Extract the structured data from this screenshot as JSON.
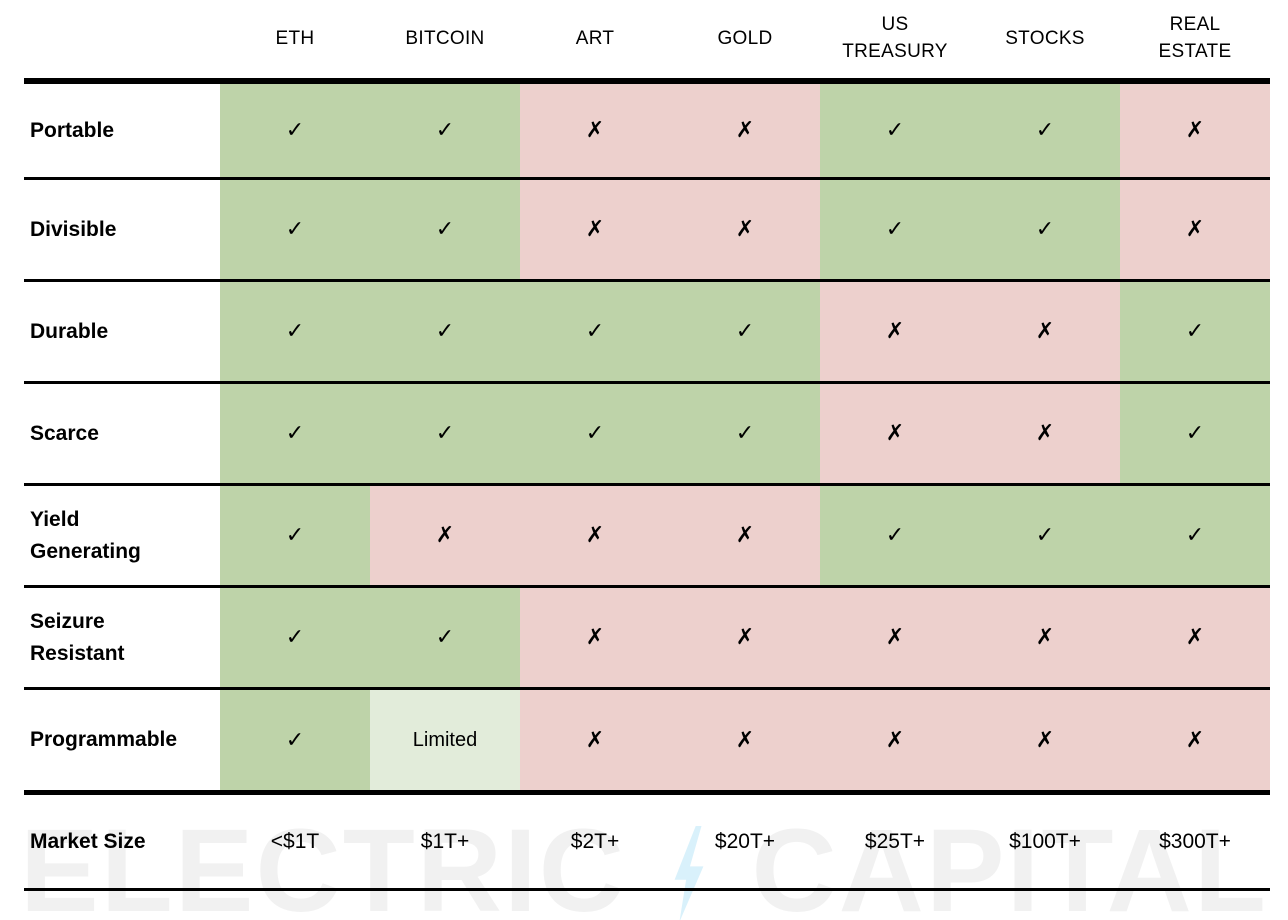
{
  "chart_data": {
    "type": "table",
    "columns": [
      "ETH",
      "BITCOIN",
      "ART",
      "GOLD",
      "US\nTREASURY",
      "STOCKS",
      "REAL\nESTATE"
    ],
    "attribute_rows": [
      {
        "label": "Portable",
        "values": [
          "yes",
          "yes",
          "no",
          "no",
          "yes",
          "yes",
          "no"
        ]
      },
      {
        "label": "Divisible",
        "values": [
          "yes",
          "yes",
          "no",
          "no",
          "yes",
          "yes",
          "no"
        ]
      },
      {
        "label": "Durable",
        "values": [
          "yes",
          "yes",
          "yes",
          "yes",
          "no",
          "no",
          "yes"
        ]
      },
      {
        "label": "Scarce",
        "values": [
          "yes",
          "yes",
          "yes",
          "yes",
          "no",
          "no",
          "yes"
        ]
      },
      {
        "label": "Yield\nGenerating",
        "values": [
          "yes",
          "no",
          "no",
          "no",
          "yes",
          "yes",
          "yes"
        ]
      },
      {
        "label": "Seizure\nResistant",
        "values": [
          "yes",
          "yes",
          "no",
          "no",
          "no",
          "no",
          "no"
        ]
      },
      {
        "label": "Programmable",
        "values": [
          "yes",
          "limited",
          "no",
          "no",
          "no",
          "no",
          "no"
        ]
      }
    ],
    "footer_row": {
      "label": "Market Size",
      "values": [
        "<$1T",
        "$1T+",
        "$2T+",
        "$20T+",
        "$25T+",
        "$100T+",
        "$300T+"
      ]
    }
  },
  "glyphs": {
    "yes": "✓",
    "no": "✗",
    "limited": "Limited"
  },
  "colors": {
    "yes_bg": "#bed3a9",
    "no_bg": "#edd0cd",
    "limited_bg": "#e2ecda",
    "line": "#000000"
  },
  "watermark": {
    "word_left": "ELECTRIC",
    "word_right": "CAPITAL",
    "bolt_icon": "lightning-bolt-icon",
    "text_color": "#f1f1f1",
    "bolt_color": "#d9f1fb"
  }
}
